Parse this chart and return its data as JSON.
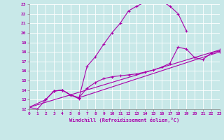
{
  "xlabel": "Windchill (Refroidissement éolien,°C)",
  "xlim": [
    0,
    23
  ],
  "ylim": [
    12,
    23
  ],
  "bg_color": "#c8e8e8",
  "line_color": "#aa00aa",
  "grid_color": "#ffffff",
  "line1_x": [
    0,
    1,
    2,
    3,
    4,
    5,
    6,
    7,
    8,
    9,
    10,
    11,
    12,
    13,
    14,
    15,
    16,
    17,
    18,
    19
  ],
  "line1_y": [
    12.2,
    12.0,
    13.0,
    13.9,
    14.0,
    13.5,
    13.1,
    16.5,
    17.5,
    18.8,
    20.0,
    21.0,
    22.3,
    22.8,
    23.2,
    23.3,
    23.3,
    22.8,
    22.0,
    20.2
  ],
  "line2_x": [
    0,
    2,
    3,
    4,
    5,
    6,
    7,
    8,
    9,
    10,
    11,
    12,
    13,
    14,
    15,
    16,
    17,
    18,
    19,
    20,
    21,
    22,
    23
  ],
  "line2_y": [
    12.2,
    13.0,
    13.9,
    14.0,
    13.5,
    13.2,
    14.2,
    14.8,
    15.2,
    15.4,
    15.5,
    15.6,
    15.7,
    15.9,
    16.1,
    16.4,
    16.8,
    18.5,
    18.3,
    17.4,
    17.2,
    17.9,
    18.1
  ],
  "line3_x": [
    2,
    3,
    4,
    5,
    6,
    23
  ],
  "line3_y": [
    13.0,
    13.9,
    14.0,
    13.5,
    13.2,
    18.0
  ],
  "line4_x": [
    0,
    23
  ],
  "line4_y": [
    12.2,
    18.2
  ]
}
